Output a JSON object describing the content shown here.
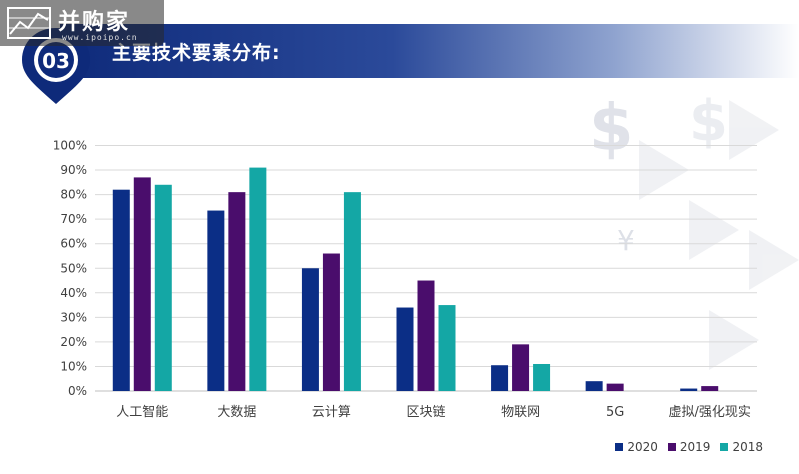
{
  "header": {
    "title": "主要技术要素分布:"
  },
  "watermark": {
    "brand": "并购家",
    "url": "www.ipoipo.cn"
  },
  "colors": {
    "s2020": "#0b2e86",
    "s2019": "#4a0d6c",
    "s2018": "#14a7a5"
  },
  "chart_data": {
    "type": "bar",
    "categories": [
      "人工智能",
      "大数据",
      "云计算",
      "区块链",
      "物联网",
      "5G",
      "虚拟/强化现实"
    ],
    "series": [
      {
        "name": "2020",
        "values": [
          82,
          73.5,
          50,
          34,
          10.5,
          4,
          1
        ]
      },
      {
        "name": "2019",
        "values": [
          87,
          81,
          56,
          45,
          19,
          3,
          2
        ]
      },
      {
        "name": "2018",
        "values": [
          84,
          91,
          81,
          35,
          11,
          0,
          0
        ]
      }
    ],
    "ylim": [
      0,
      100
    ],
    "yticks": [
      "0%",
      "10%",
      "20%",
      "30%",
      "40%",
      "50%",
      "60%",
      "70%",
      "80%",
      "90%",
      "100%"
    ],
    "grid": true,
    "legend_position": "bottom-right"
  }
}
